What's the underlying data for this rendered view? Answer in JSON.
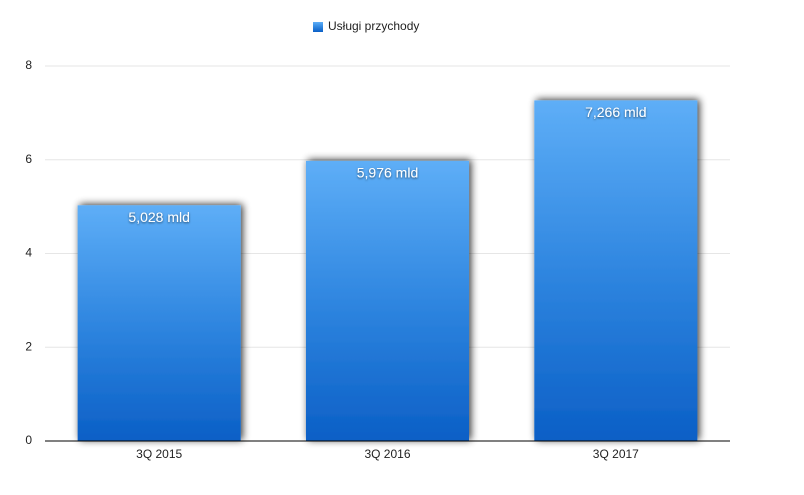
{
  "chart_data": {
    "type": "bar",
    "legend": "Usługi przychody",
    "categories": [
      "3Q 2015",
      "3Q 2016",
      "3Q 2017"
    ],
    "series": [
      {
        "name": "Usługi przychody",
        "color": "#2f86e0",
        "values": [
          5.028,
          5.976,
          7.266
        ],
        "value_labels": [
          "5,028 mld",
          "5,976 mld",
          "7,266 mld"
        ]
      }
    ],
    "ylim": [
      0,
      8
    ],
    "yticks": [
      0,
      2,
      4,
      6,
      8
    ],
    "grid": true
  }
}
